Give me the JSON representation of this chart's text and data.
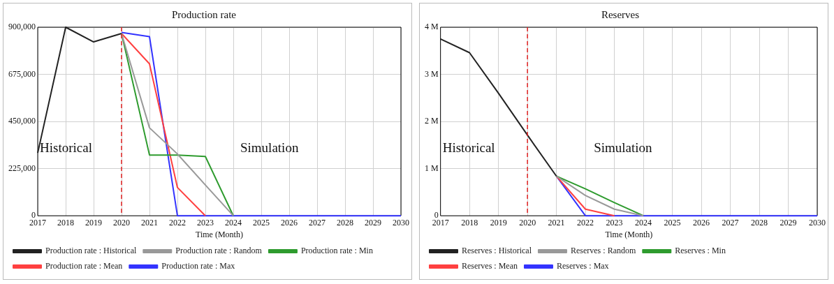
{
  "chart_data": [
    {
      "type": "line",
      "title": "Production rate",
      "xlabel": "Time (Month)",
      "xlim": [
        2017,
        2030
      ],
      "xticks": [
        2017,
        2018,
        2019,
        2020,
        2021,
        2022,
        2023,
        2024,
        2025,
        2026,
        2027,
        2028,
        2029,
        2030
      ],
      "ylim": [
        0,
        900000
      ],
      "yticks": [
        {
          "value": 0,
          "label": "0"
        },
        {
          "value": 225000,
          "label": "225,000"
        },
        {
          "value": 450000,
          "label": "450,000"
        },
        {
          "value": 675000,
          "label": "675,000"
        },
        {
          "value": 900000,
          "label": "900,000"
        }
      ],
      "grid": true,
      "legend": "bottom",
      "marker": "none",
      "line_style": "solid",
      "ref_lines": [
        {
          "axis": "x",
          "value": 2020,
          "color": "#e02020",
          "line_style": "dashed"
        }
      ],
      "annotations": [
        "Historical",
        "Simulation"
      ],
      "series": [
        {
          "name": "Production rate : Max",
          "color": "#3333ff",
          "x": [
            2020,
            2021,
            2022,
            2023,
            2024,
            2025,
            2026,
            2027,
            2028,
            2029,
            2030
          ],
          "values": [
            875000,
            855000,
            0,
            0,
            0,
            0,
            0,
            0,
            0,
            0,
            0
          ]
        },
        {
          "name": "Production rate : Mean",
          "color": "#ff4040",
          "x": [
            2020,
            2021,
            2022,
            2023
          ],
          "values": [
            870000,
            725000,
            135000,
            0
          ]
        },
        {
          "name": "Production rate : Min",
          "color": "#2e9b2e",
          "x": [
            2020,
            2021,
            2022,
            2023,
            2024
          ],
          "values": [
            870000,
            290000,
            290000,
            283000,
            0
          ]
        },
        {
          "name": "Production rate : Random",
          "color": "#999999",
          "x": [
            2020,
            2021,
            2022,
            2023,
            2024
          ],
          "values": [
            870000,
            420000,
            295000,
            147000,
            0
          ]
        },
        {
          "name": "Production rate : Historical",
          "color": "#222222",
          "x": [
            2017,
            2018,
            2019,
            2020
          ],
          "values": [
            300000,
            900000,
            830000,
            870000
          ]
        }
      ]
    },
    {
      "type": "line",
      "title": "Reserves",
      "xlabel": "Time (Month)",
      "xlim": [
        2017,
        2030
      ],
      "xticks": [
        2017,
        2018,
        2019,
        2020,
        2021,
        2022,
        2023,
        2024,
        2025,
        2026,
        2027,
        2028,
        2029,
        2030
      ],
      "ylim": [
        0,
        4000000
      ],
      "yticks": [
        {
          "value": 0,
          "label": "0"
        },
        {
          "value": 1000000,
          "label": "1 M"
        },
        {
          "value": 2000000,
          "label": "2 M"
        },
        {
          "value": 3000000,
          "label": "3 M"
        },
        {
          "value": 4000000,
          "label": "4 M"
        }
      ],
      "grid": true,
      "legend": "bottom",
      "marker": "none",
      "line_style": "solid",
      "ref_lines": [
        {
          "axis": "x",
          "value": 2020,
          "color": "#e02020",
          "line_style": "dashed"
        }
      ],
      "annotations": [
        "Historical",
        "Simulation"
      ],
      "series": [
        {
          "name": "Reserves : Max",
          "color": "#3333ff",
          "x": [
            2021,
            2022,
            2023,
            2024,
            2025,
            2026,
            2027,
            2028,
            2029,
            2030
          ],
          "values": [
            840000,
            0,
            0,
            0,
            0,
            0,
            0,
            0,
            0,
            0
          ]
        },
        {
          "name": "Reserves : Mean",
          "color": "#ff4040",
          "x": [
            2021,
            2022,
            2023
          ],
          "values": [
            840000,
            140000,
            0
          ]
        },
        {
          "name": "Reserves : Min",
          "color": "#2e9b2e",
          "x": [
            2021,
            2022,
            2023,
            2024
          ],
          "values": [
            840000,
            570000,
            280000,
            0
          ]
        },
        {
          "name": "Reserves : Random",
          "color": "#999999",
          "x": [
            2021,
            2022,
            2023,
            2024
          ],
          "values": [
            840000,
            430000,
            140000,
            0
          ]
        },
        {
          "name": "Reserves : Historical",
          "color": "#222222",
          "x": [
            2017,
            2018,
            2019,
            2020,
            2021
          ],
          "values": [
            3750000,
            3460000,
            2600000,
            1710000,
            840000
          ]
        }
      ]
    }
  ]
}
